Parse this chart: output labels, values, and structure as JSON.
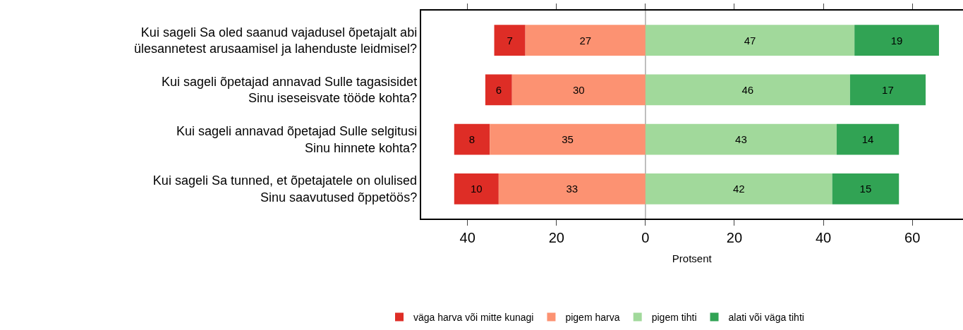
{
  "chart_data": {
    "type": "bar",
    "orientation": "horizontal",
    "categories": [
      "Kui sageli Sa oled saanud vajadusel õpetajalt abi\nülesannetest arusaamisel ja lahenduste leidmisel?",
      "Kui sageli õpetajad annavad Sulle tagasisidet\nSinu iseseisvate tööde kohta?",
      "Kui sageli annavad õpetajad Sulle selgitusi\nSinu hinnete kohta?",
      "Kui sageli Sa tunned, et õpetajatele on olulised\nSinu saavutused õppetöös?"
    ],
    "series": [
      {
        "name": "väga harva või mitte kunagi",
        "color": "#de2d26",
        "values": [
          7,
          6,
          8,
          10
        ],
        "base": [
          -34,
          -36,
          -43,
          -43
        ]
      },
      {
        "name": "pigem harva",
        "color": "#fc9272",
        "values": [
          27,
          30,
          35,
          33
        ],
        "base": [
          -27,
          -30,
          -35,
          -33
        ]
      },
      {
        "name": "pigem tihti",
        "color": "#a1d99b",
        "values": [
          47,
          46,
          43,
          42
        ],
        "base": [
          0,
          0,
          0,
          0
        ]
      },
      {
        "name": "alati või väga tihti",
        "color": "#31a354",
        "values": [
          19,
          17,
          14,
          15
        ],
        "base": [
          47,
          46,
          43,
          42
        ]
      }
    ],
    "data_labels": true,
    "xlabel": "Protsent",
    "xlim": [
      -50.5,
      71.4
    ],
    "xticks": [
      {
        "value": -40,
        "label": "40"
      },
      {
        "value": -20,
        "label": "20"
      },
      0,
      20,
      40,
      60
    ],
    "ref_lines": [
      {
        "axis": "x",
        "value": 0,
        "color": "#aaaaaa"
      }
    ],
    "legend": "bottom",
    "grid": false
  }
}
